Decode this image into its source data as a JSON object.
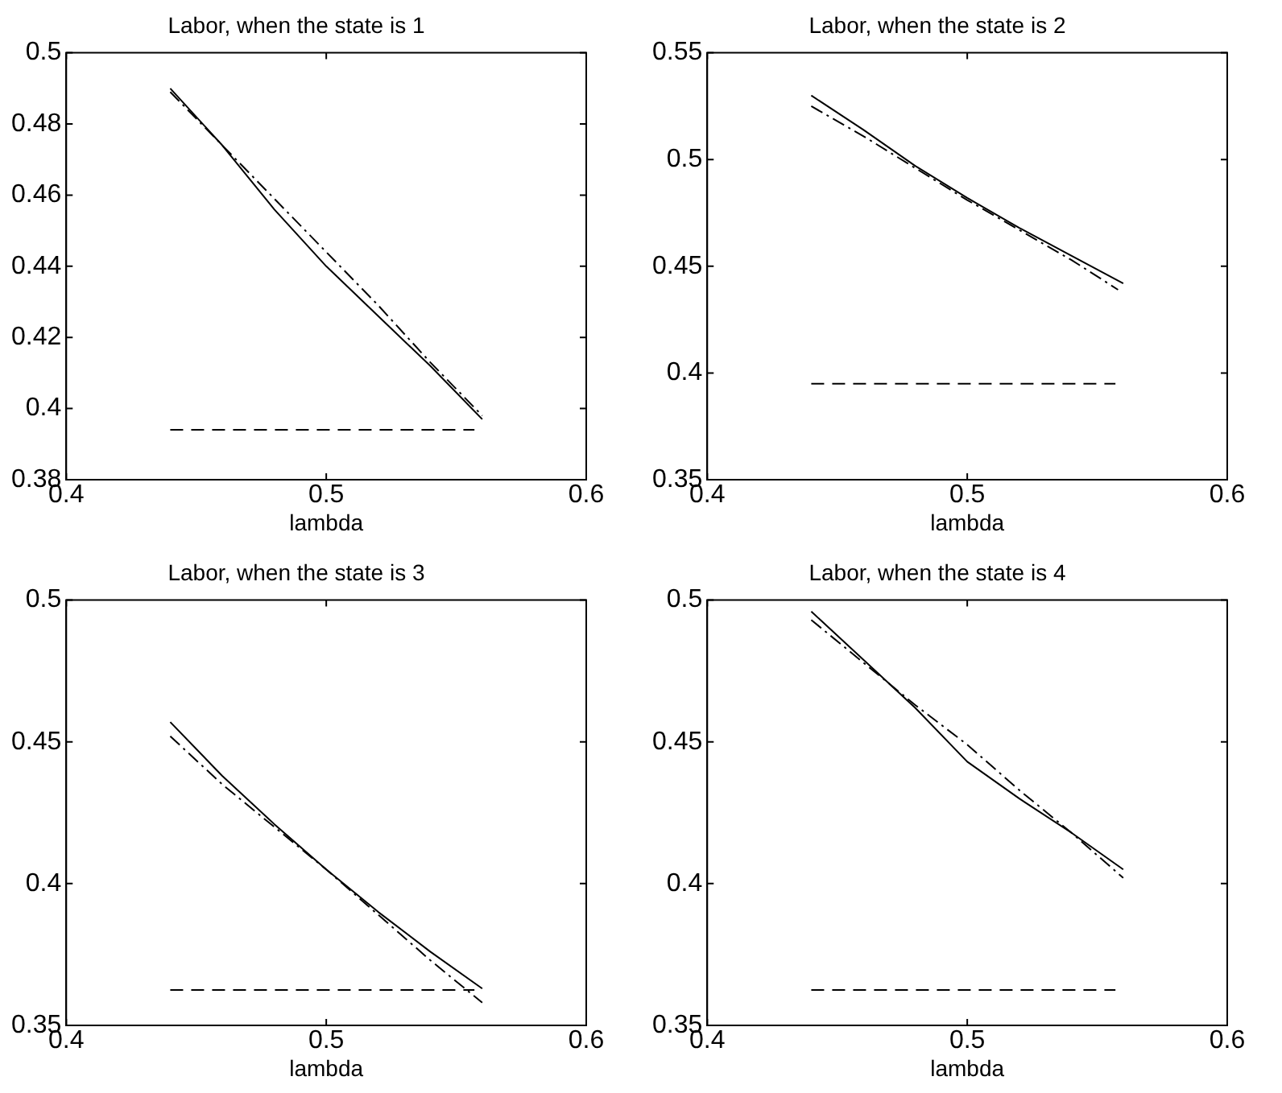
{
  "chart_data": [
    {
      "type": "line",
      "title": "Labor, when the state is 1",
      "xlabel": "lambda",
      "xlim": [
        0.4,
        0.6
      ],
      "xticks": [
        0.4,
        0.5,
        0.6
      ],
      "ylim": [
        0.38,
        0.5
      ],
      "yticks": [
        0.38,
        0.4,
        0.42,
        0.44,
        0.46,
        0.48,
        0.5
      ],
      "grid": false,
      "legend": false,
      "marker": "none",
      "series": [
        {
          "color": "#000000",
          "line_style": "solid",
          "x": [
            0.44,
            0.46,
            0.48,
            0.5,
            0.52,
            0.54,
            0.56
          ],
          "values": [
            0.49,
            0.474,
            0.456,
            0.44,
            0.426,
            0.412,
            0.397
          ]
        },
        {
          "color": "#000000",
          "line_style": "dashdot",
          "x": [
            0.44,
            0.46,
            0.48,
            0.5,
            0.52,
            0.54,
            0.56
          ],
          "values": [
            0.489,
            0.474,
            0.459,
            0.444,
            0.429,
            0.413,
            0.398
          ]
        },
        {
          "color": "#000000",
          "line_style": "dashed",
          "x": [
            0.44,
            0.557
          ],
          "values": [
            0.394,
            0.394
          ]
        }
      ]
    },
    {
      "type": "line",
      "title": "Labor, when the state is 2",
      "xlabel": "lambda",
      "xlim": [
        0.4,
        0.6
      ],
      "xticks": [
        0.4,
        0.5,
        0.6
      ],
      "ylim": [
        0.35,
        0.55
      ],
      "yticks": [
        0.35,
        0.4,
        0.45,
        0.5,
        0.55
      ],
      "grid": false,
      "legend": false,
      "marker": "none",
      "series": [
        {
          "color": "#000000",
          "line_style": "solid",
          "x": [
            0.44,
            0.46,
            0.48,
            0.5,
            0.52,
            0.54,
            0.56
          ],
          "values": [
            0.53,
            0.514,
            0.497,
            0.482,
            0.468,
            0.455,
            0.442
          ]
        },
        {
          "color": "#000000",
          "line_style": "dashdot",
          "x": [
            0.44,
            0.46,
            0.48,
            0.5,
            0.52,
            0.54,
            0.558
          ],
          "values": [
            0.525,
            0.511,
            0.496,
            0.481,
            0.467,
            0.453,
            0.439
          ]
        },
        {
          "color": "#000000",
          "line_style": "dashed",
          "x": [
            0.44,
            0.557
          ],
          "values": [
            0.395,
            0.395
          ]
        }
      ]
    },
    {
      "type": "line",
      "title": "Labor, when the state is 3",
      "xlabel": "lambda",
      "xlim": [
        0.4,
        0.6
      ],
      "xticks": [
        0.4,
        0.5,
        0.6
      ],
      "ylim": [
        0.35,
        0.5
      ],
      "yticks": [
        0.35,
        0.4,
        0.45,
        0.5
      ],
      "grid": false,
      "legend": false,
      "marker": "none",
      "series": [
        {
          "color": "#000000",
          "line_style": "solid",
          "x": [
            0.44,
            0.46,
            0.48,
            0.5,
            0.52,
            0.54,
            0.56
          ],
          "values": [
            0.457,
            0.438,
            0.421,
            0.405,
            0.39,
            0.376,
            0.363
          ]
        },
        {
          "color": "#000000",
          "line_style": "dashdot",
          "x": [
            0.44,
            0.46,
            0.48,
            0.5,
            0.52,
            0.54,
            0.56
          ],
          "values": [
            0.452,
            0.435,
            0.42,
            0.405,
            0.389,
            0.373,
            0.358
          ]
        },
        {
          "color": "#000000",
          "line_style": "dashed",
          "x": [
            0.44,
            0.557
          ],
          "values": [
            0.3625,
            0.3625
          ]
        }
      ]
    },
    {
      "type": "line",
      "title": "Labor, when the state is 4",
      "xlabel": "lambda",
      "xlim": [
        0.4,
        0.6
      ],
      "xticks": [
        0.4,
        0.5,
        0.6
      ],
      "ylim": [
        0.35,
        0.5
      ],
      "yticks": [
        0.35,
        0.4,
        0.45,
        0.5
      ],
      "grid": false,
      "legend": false,
      "marker": "none",
      "series": [
        {
          "color": "#000000",
          "line_style": "solid",
          "x": [
            0.44,
            0.46,
            0.48,
            0.5,
            0.52,
            0.54,
            0.56
          ],
          "values": [
            0.496,
            0.479,
            0.462,
            0.443,
            0.43,
            0.418,
            0.405
          ]
        },
        {
          "color": "#000000",
          "line_style": "dashdot",
          "x": [
            0.44,
            0.46,
            0.48,
            0.5,
            0.52,
            0.54,
            0.56
          ],
          "values": [
            0.493,
            0.478,
            0.463,
            0.449,
            0.433,
            0.418,
            0.402
          ]
        },
        {
          "color": "#000000",
          "line_style": "dashed",
          "x": [
            0.44,
            0.557
          ],
          "values": [
            0.3625,
            0.3625
          ]
        }
      ]
    }
  ]
}
